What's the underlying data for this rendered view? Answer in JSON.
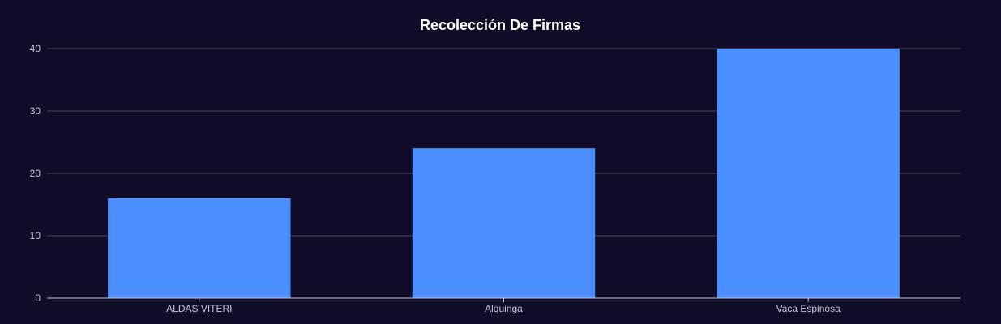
{
  "chart_data": {
    "type": "bar",
    "title": "Recolección De Firmas",
    "xlabel": "",
    "ylabel": "",
    "categories": [
      "ALDAS VITERI",
      "Alquinga",
      "Vaca Espinosa"
    ],
    "values": [
      16,
      24,
      40
    ],
    "ylim": [
      0,
      40
    ],
    "yticks": [
      "0",
      "10",
      "20",
      "30",
      "40"
    ],
    "grid": true,
    "legend": "none",
    "colors": {
      "background": "#110d29",
      "bar": "#4b8ffe",
      "grid": "#4a4660",
      "axis": "#c8c8d8",
      "text": "#c8c8d8",
      "title": "#ffffff"
    }
  }
}
